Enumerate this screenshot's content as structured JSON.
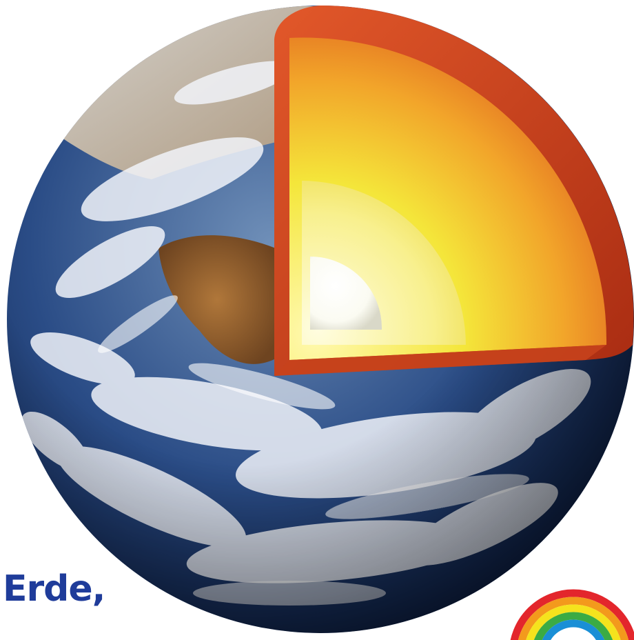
{
  "caption": {
    "text": "Erde,",
    "color": "#1f3c9a"
  },
  "earth": {
    "icon": "earth-globe-cutaway",
    "ocean_color": "#1e3c7a",
    "cloud_color": "#f3f6fb",
    "land_color": "#8a5a2a"
  },
  "core_cutaway": {
    "crust_color": "#c93a18",
    "mantle_inner_color": "#f6e33a",
    "outer_core_color": "#f8ef9a",
    "inner_core_color": "#ffffff"
  },
  "logo": {
    "icon": "rainbow-logo",
    "band_colors": [
      "#e3262c",
      "#f39a1c",
      "#f5e31d",
      "#3bab44",
      "#1a8fd6"
    ]
  }
}
